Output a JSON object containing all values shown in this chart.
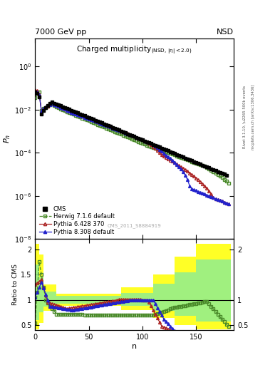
{
  "title_top_left": "7000 GeV pp",
  "title_top_right": "NSD",
  "plot_title": "Charged multiplicity",
  "plot_subtitle": "(NSD, |\\u03b7| < 2.0)",
  "ylabel_top": "P_n",
  "ylabel_bottom": "Ratio to CMS",
  "xlabel": "n",
  "watermark": "CMS_2011_S8884919",
  "right_label": "mcplots.cern.ch [arXiv:1306.3436]",
  "right_label2": "Rivet 3.1.10, \\u2265 500k events",
  "ylim_top_lo": 1e-08,
  "ylim_top_hi": 20,
  "ylim_bottom_lo": 0.4,
  "ylim_bottom_hi": 2.2,
  "xlim_lo": 0,
  "xlim_hi": 185,
  "color_cms": "#000000",
  "color_herwig": "#4a8a2a",
  "color_pythia6": "#aa2222",
  "color_pythia8": "#2222cc",
  "color_yellow_band": "#ffff00",
  "color_green_band": "#90ee90",
  "background_color": "#ffffff"
}
